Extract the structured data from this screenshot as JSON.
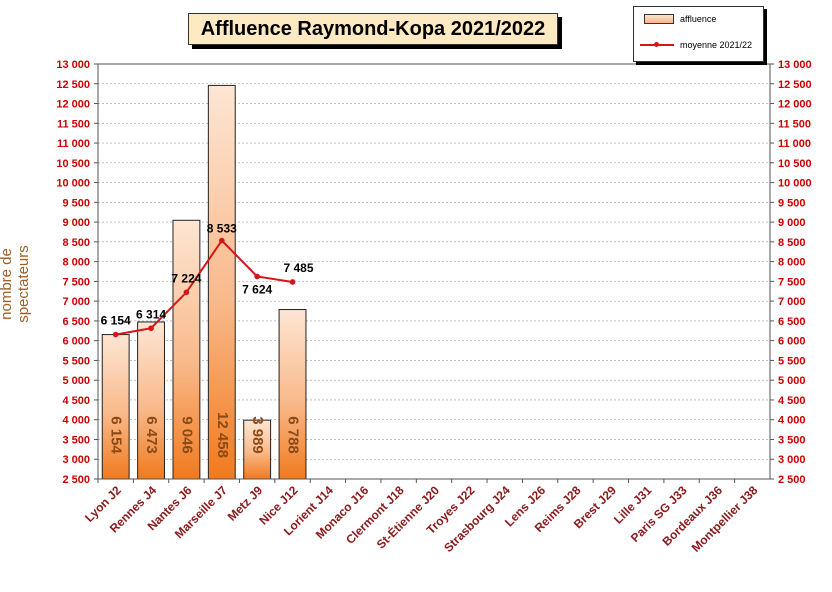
{
  "chart_data": {
    "type": "bar",
    "title": "Affluence Raymond-Kopa 2021/2022",
    "ylabel": "nombre de spectateurs",
    "ylim": [
      2500,
      13000
    ],
    "ytick_step": 500,
    "yticks": [
      "2 500",
      "3 000",
      "3 500",
      "4 000",
      "4 500",
      "5 000",
      "5 500",
      "6 000",
      "6 500",
      "7 000",
      "7 500",
      "8 000",
      "8 500",
      "9 000",
      "9 500",
      "10 000",
      "10 500",
      "11 000",
      "11 500",
      "12 000",
      "12 500",
      "13 000"
    ],
    "categories": [
      "Lyon J2",
      "Rennes J4",
      "Nantes J6",
      "Marseille J7",
      "Metz J9",
      "Nice J12",
      "Lorient J14",
      "Monaco J16",
      "Clermont J18",
      "St-Étienne J20",
      "Troyes J22",
      "Strasbourg J24",
      "Lens J26",
      "Reims J28",
      "Brest J29",
      "Lille J31",
      "Paris SG J33",
      "Bordeaux J36",
      "Montpellier J38"
    ],
    "series": [
      {
        "name": "affluence",
        "type": "bar",
        "values": [
          6154,
          6473,
          9046,
          12458,
          3989,
          6788,
          null,
          null,
          null,
          null,
          null,
          null,
          null,
          null,
          null,
          null,
          null,
          null,
          null
        ],
        "labels": [
          "6 154",
          "6 473",
          "9 046",
          "12 458",
          "3 989",
          "6 788"
        ]
      },
      {
        "name": "moyenne 2021/22",
        "type": "line",
        "values": [
          6154,
          6314,
          7224,
          8533,
          7624,
          7485,
          null,
          null,
          null,
          null,
          null,
          null,
          null,
          null,
          null,
          null,
          null,
          null,
          null
        ],
        "labels": [
          "6 154",
          "6 314",
          "7 224",
          "8 533",
          "7 624",
          "7 485"
        ]
      }
    ],
    "grid": true,
    "legend_position": "top-right",
    "colors": {
      "line": "#d8141b",
      "tick": "#cc0000",
      "category": "#8b1a1a",
      "bar_top": "#fde6d4",
      "bar_bottom": "#f07a1e",
      "bar_label": "#8a4a18",
      "axis_title": "#a0602a"
    }
  }
}
